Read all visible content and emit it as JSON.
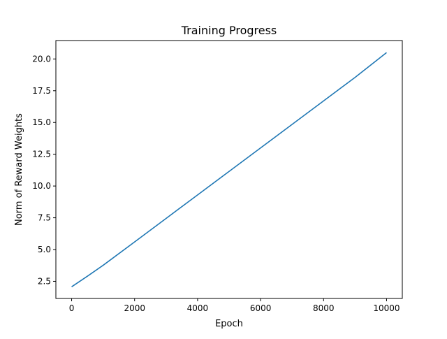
{
  "chart_data": {
    "type": "line",
    "title": "Training Progress",
    "xlabel": "Epoch",
    "ylabel": "Norm of Reward Weights",
    "xlim": [
      -500,
      10500
    ],
    "ylim": [
      1.15,
      21.45
    ],
    "xticks": [
      0,
      2000,
      4000,
      6000,
      8000,
      10000
    ],
    "xtick_labels": [
      "0",
      "2000",
      "4000",
      "6000",
      "8000",
      "10000"
    ],
    "yticks": [
      2.5,
      5.0,
      7.5,
      10.0,
      12.5,
      15.0,
      17.5,
      20.0
    ],
    "ytick_labels": [
      "2.5",
      "5.0",
      "7.5",
      "10.0",
      "12.5",
      "15.0",
      "17.5",
      "20.0"
    ],
    "grid": false,
    "legend": false,
    "series": [
      {
        "color": "#1f77b4",
        "x": [
          0,
          500,
          1000,
          2000,
          3000,
          4000,
          5000,
          6000,
          7000,
          8000,
          9000,
          10000
        ],
        "y": [
          2.07,
          2.9,
          3.76,
          5.6,
          7.45,
          9.3,
          11.15,
          13.0,
          14.85,
          16.7,
          18.55,
          20.5
        ]
      }
    ]
  }
}
